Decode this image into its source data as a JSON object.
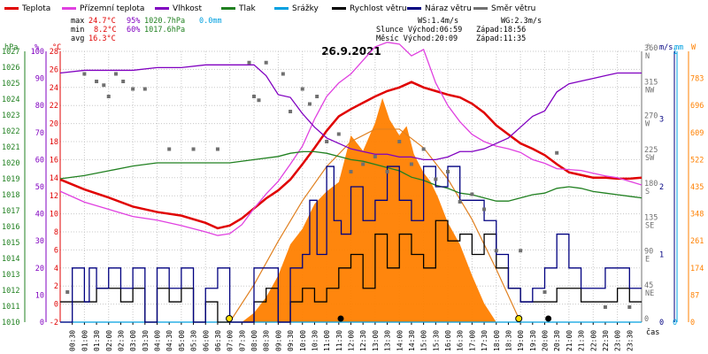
{
  "legend": [
    {
      "label": "Teplota",
      "color": "#e00000"
    },
    {
      "label": "Přízemní teplota",
      "color": "#e040e0"
    },
    {
      "label": "Vlhkost",
      "color": "#8000c0"
    },
    {
      "label": "Tlak",
      "color": "#208020"
    },
    {
      "label": "Srážky",
      "color": "#00a0e0"
    },
    {
      "label": "Rychlost větru",
      "color": "#000000"
    },
    {
      "label": "Náraz větru",
      "color": "#000080"
    },
    {
      "label": "Směr větru",
      "color": "#707070"
    }
  ],
  "stats": {
    "max": {
      "label": "max",
      "temp": "24.7°C",
      "hum": "95%",
      "press": "1020.7hPa",
      "rain": "0.0mm"
    },
    "min": {
      "label": "min",
      "temp": "8.2°C",
      "hum": "60%",
      "press": "1017.6hPa"
    },
    "avg": {
      "label": "avg",
      "temp": "16.3°C"
    }
  },
  "info": {
    "ws": "WS:1.4m/s",
    "wg": "WG:2.3m/s",
    "sun": "Slunce Východ:06:59",
    "sun_set": "Západ:18:56",
    "moon": "Měsíc Východ:20:09",
    "moon_set": "Západ:11:35"
  },
  "chart_data": {
    "type": "line",
    "title": "26.9.2021",
    "x_tick_labels": [
      "00:30",
      "01:00",
      "01:30",
      "02:00",
      "02:30",
      "03:00",
      "03:30",
      "04:00",
      "04:30",
      "05:00",
      "05:30",
      "06:00",
      "06:30",
      "07:00",
      "07:30",
      "08:00",
      "08:30",
      "09:00",
      "09:30",
      "10:00",
      "10:30",
      "11:00",
      "11:30",
      "12:00",
      "12:30",
      "13:00",
      "13:30",
      "14:00",
      "14:30",
      "15:00",
      "15:30",
      "16:00",
      "16:30",
      "17:00",
      "17:30",
      "18:00",
      "18:30",
      "19:00",
      "19:30",
      "20:00",
      "20:30",
      "21:00",
      "21:30",
      "22:00",
      "22:30",
      "23:00",
      "23:30"
    ],
    "xlabel": "čas",
    "axes": {
      "pressure": {
        "unit": "hPa",
        "range": [
          1010,
          1027
        ],
        "ticks": [
          1010,
          1011,
          1012,
          1013,
          1014,
          1015,
          1016,
          1017,
          1018,
          1019,
          1020,
          1021,
          1022,
          1023,
          1024,
          1025,
          1026,
          1027
        ]
      },
      "humidity": {
        "unit": "%",
        "range": [
          0,
          100
        ],
        "ticks": [
          0,
          10,
          20,
          30,
          40,
          50,
          60,
          70,
          80,
          90,
          100
        ]
      },
      "temperature": {
        "unit": "°C",
        "range": [
          -2,
          28
        ],
        "ticks": [
          -2,
          0,
          2,
          4,
          6,
          8,
          10,
          12,
          14,
          16,
          18,
          20,
          22,
          24,
          26,
          28
        ]
      },
      "direction": {
        "unit": "°",
        "range": [
          0,
          360
        ],
        "ticks": [
          {
            "v": 0,
            "l": "0"
          },
          {
            "v": 45,
            "l": "45"
          },
          {
            "v": 90,
            "l": "90"
          },
          {
            "v": 135,
            "l": "135"
          },
          {
            "v": 180,
            "l": "180"
          },
          {
            "v": 225,
            "l": "225"
          },
          {
            "v": 270,
            "l": "270"
          },
          {
            "v": 315,
            "l": "315"
          },
          {
            "v": 360,
            "l": "360"
          }
        ],
        "dir_labels": [
          {
            "v": 0,
            "l": ""
          },
          {
            "v": 45,
            "l": "NE"
          },
          {
            "v": 90,
            "l": "E"
          },
          {
            "v": 135,
            "l": "SE"
          },
          {
            "v": 180,
            "l": "S"
          },
          {
            "v": 225,
            "l": "SW"
          },
          {
            "v": 270,
            "l": "W"
          },
          {
            "v": 315,
            "l": "NW"
          },
          {
            "v": 360,
            "l": "N"
          }
        ]
      },
      "wind": {
        "unit": "m/s",
        "range": [
          0,
          4
        ],
        "ticks": [
          0,
          1,
          2,
          3
        ]
      },
      "rain": {
        "unit": "mm",
        "range": [
          0,
          1
        ],
        "ticks": [
          0,
          1
        ]
      },
      "solar": {
        "unit": "W",
        "range": [
          0,
          870
        ],
        "ticks": [
          0,
          87,
          174,
          261,
          348,
          435,
          522,
          609,
          696,
          783
        ]
      }
    },
    "series": [
      {
        "name": "Teplota",
        "axis": "temperature",
        "color": "#e00000",
        "x": [
          0,
          1,
          2,
          3,
          4,
          5,
          6,
          6.5,
          7,
          7.5,
          8,
          8.5,
          9,
          9.5,
          10,
          10.5,
          11,
          11.5,
          12,
          12.5,
          13,
          13.5,
          14,
          14.5,
          15,
          15.5,
          16,
          16.5,
          17,
          17.5,
          18,
          18.5,
          19,
          19.5,
          20,
          20.5,
          21,
          21.5,
          22,
          22.5,
          23,
          23.5,
          24
        ],
        "y": [
          13.8,
          12.7,
          11.8,
          10.8,
          10.2,
          9.8,
          9.0,
          8.4,
          8.7,
          9.5,
          10.6,
          11.7,
          12.6,
          13.8,
          15.5,
          17.3,
          19.2,
          20.8,
          21.6,
          22.3,
          23.0,
          23.6,
          24.0,
          24.6,
          24.0,
          23.6,
          23.2,
          22.9,
          22.2,
          21.2,
          19.8,
          18.8,
          17.8,
          17.2,
          16.5,
          15.5,
          14.6,
          14.3,
          14.0,
          14.0,
          13.9,
          13.9,
          14.0
        ]
      },
      {
        "name": "Přízemní teplota",
        "axis": "temperature",
        "color": "#e040e0",
        "x": [
          0,
          1,
          2,
          3,
          4,
          5,
          6,
          6.5,
          7,
          7.5,
          8,
          8.5,
          9,
          9.5,
          10,
          10.5,
          11,
          11.5,
          12,
          12.5,
          13,
          13.5,
          14,
          14.5,
          15,
          15.5,
          16,
          16.5,
          17,
          17.5,
          18,
          18.5,
          19,
          19.5,
          20,
          20.5,
          21,
          21.5,
          22,
          22.5,
          23,
          23.5,
          24
        ],
        "y": [
          12.5,
          11.3,
          10.5,
          9.7,
          9.3,
          8.7,
          8.0,
          7.6,
          7.8,
          8.8,
          10.6,
          12.2,
          13.6,
          15.5,
          17.5,
          20.5,
          23.0,
          24.5,
          25.5,
          27.0,
          28.5,
          29.0,
          28.8,
          27.5,
          28.2,
          24.5,
          22.0,
          20.2,
          18.8,
          18.0,
          17.5,
          17.2,
          16.8,
          16.0,
          15.6,
          15.0,
          14.9,
          14.8,
          14.5,
          14.2,
          14.0,
          13.6,
          13.2
        ]
      },
      {
        "name": "Vlhkost",
        "axis": "humidity",
        "color": "#8000c0",
        "x": [
          0,
          1,
          2,
          3,
          4,
          5,
          6,
          7,
          7.5,
          8,
          8.5,
          9,
          9.5,
          10,
          10.5,
          11,
          11.5,
          12,
          12.5,
          13,
          13.5,
          14,
          14.5,
          15,
          15.5,
          16,
          16.5,
          17,
          17.5,
          18,
          18.5,
          19,
          19.5,
          20,
          20.5,
          21,
          21.5,
          22,
          22.5,
          23,
          23.5,
          24
        ],
        "y": [
          92,
          93,
          93,
          93,
          94,
          94,
          95,
          95,
          95,
          95,
          91,
          84,
          83,
          77,
          72,
          68,
          66,
          64,
          63,
          62,
          62,
          61,
          61,
          60,
          60,
          61,
          63,
          63,
          64,
          66,
          68,
          72,
          76,
          78,
          85,
          88,
          89,
          90,
          91,
          92,
          92,
          92
        ]
      },
      {
        "name": "Tlak",
        "axis": "pressure",
        "color": "#208020",
        "x": [
          0,
          1,
          2,
          3,
          4,
          5,
          6,
          7,
          8,
          9,
          9.5,
          10,
          10.5,
          11,
          11.5,
          12,
          12.5,
          13,
          13.5,
          14,
          14.5,
          15,
          15.5,
          16,
          16.5,
          17,
          17.5,
          18,
          18.5,
          19,
          19.5,
          20,
          20.5,
          21,
          21.5,
          22,
          22.5,
          23,
          23.5,
          24
        ],
        "y": [
          1019.0,
          1019.2,
          1019.5,
          1019.8,
          1020.0,
          1020.0,
          1020.0,
          1020.0,
          1020.2,
          1020.4,
          1020.6,
          1020.7,
          1020.7,
          1020.6,
          1020.4,
          1020.2,
          1020.1,
          1019.9,
          1019.7,
          1019.5,
          1019.1,
          1018.9,
          1018.6,
          1018.4,
          1018.1,
          1018.0,
          1017.8,
          1017.6,
          1017.6,
          1017.8,
          1018.0,
          1018.1,
          1018.4,
          1018.5,
          1018.4,
          1018.2,
          1018.1,
          1018.0,
          1017.9,
          1017.8
        ]
      },
      {
        "name": "Srážky",
        "axis": "rain",
        "color": "#00a0e0",
        "x": [
          0,
          24
        ],
        "y": [
          0,
          0
        ]
      },
      {
        "name": "Rychlost větru",
        "axis": "wind",
        "color": "#000000",
        "x": [
          0,
          1,
          1.5,
          2,
          2.5,
          3,
          3.5,
          4,
          4.5,
          5,
          5.5,
          6,
          6.5,
          7,
          7.5,
          8,
          8.5,
          9,
          9.5,
          10,
          10.5,
          11,
          11.5,
          12,
          12.5,
          13,
          13.5,
          14,
          14.5,
          15,
          15.5,
          16,
          16.5,
          17,
          17.5,
          18,
          18.5,
          19,
          19.5,
          20,
          20.5,
          21,
          21.5,
          22,
          22.5,
          23,
          23.5,
          24
        ],
        "y": [
          0.3,
          0.3,
          0.5,
          0.5,
          0.3,
          0.5,
          0,
          0.5,
          0.3,
          0.5,
          0,
          0.3,
          0,
          0,
          0,
          0.3,
          0.5,
          0,
          0.3,
          0.5,
          0.3,
          0.5,
          0.8,
          1.0,
          0.5,
          1.3,
          0.8,
          1.3,
          1.0,
          0.8,
          1.5,
          1.2,
          1.3,
          1.0,
          1.3,
          0.8,
          0.5,
          0.3,
          0.3,
          0.3,
          0.5,
          0.5,
          0.3,
          0.3,
          0.3,
          0.5,
          0.3,
          0.3
        ]
      },
      {
        "name": "Náraz větru",
        "axis": "wind",
        "color": "#000080",
        "x": [
          0,
          0.5,
          1,
          1.2,
          1.5,
          2,
          2.5,
          3,
          3.5,
          4,
          4.5,
          5,
          5.5,
          6,
          6.5,
          7,
          7.5,
          8,
          8.5,
          9,
          9.5,
          10,
          10.3,
          10.6,
          11,
          11.3,
          11.6,
          12,
          12.5,
          13,
          13.5,
          14,
          14.5,
          15,
          15.5,
          16,
          16.5,
          17,
          17.5,
          18,
          18.5,
          19,
          19.5,
          20,
          20.5,
          21,
          21.5,
          22,
          22.5,
          23,
          23.5,
          24
        ],
        "y": [
          0,
          0.8,
          0.3,
          0.8,
          0.5,
          0.8,
          0.5,
          0.8,
          0,
          0.8,
          0.5,
          0.8,
          0,
          0.5,
          0.8,
          0,
          0,
          0.8,
          0.8,
          0,
          0.8,
          1.0,
          1.8,
          1.0,
          2.3,
          1.5,
          1.3,
          2.0,
          1.5,
          1.8,
          2.3,
          1.8,
          1.5,
          2.3,
          2.0,
          2.3,
          1.8,
          1.8,
          1.5,
          1.0,
          0.5,
          0.3,
          0.5,
          0.8,
          1.3,
          0.8,
          0.5,
          0.5,
          0.8,
          0.8,
          0.5,
          0.5
        ]
      },
      {
        "name": "Směr větru",
        "axis": "direction",
        "color": "#707070",
        "x": [
          0.3,
          1.0,
          1.5,
          1.8,
          2.0,
          2.3,
          2.6,
          3.0,
          3.5,
          4.5,
          5.5,
          6.5,
          7.8,
          8.0,
          8.2,
          8.5,
          9.2,
          9.5,
          10.0,
          10.3,
          10.6,
          11.0,
          11.5,
          12.0,
          12.5,
          13.0,
          13.5,
          14.0,
          14.5,
          15.0,
          15.5,
          16.0,
          16.5,
          17.0,
          17.5,
          18.0,
          19.0,
          20.0,
          20.5,
          22.5,
          23.5
        ],
        "y": [
          40,
          330,
          320,
          315,
          300,
          330,
          320,
          310,
          310,
          230,
          230,
          230,
          345,
          300,
          295,
          345,
          330,
          280,
          310,
          290,
          300,
          240,
          250,
          200,
          210,
          220,
          200,
          240,
          210,
          230,
          190,
          200,
          160,
          170,
          150,
          95,
          95,
          40,
          225,
          20,
          20
        ]
      }
    ],
    "solar_series": {
      "name": "Solar",
      "axis": "solar",
      "color": "#ff8000",
      "x": [
        7.5,
        8,
        8.5,
        9,
        9.5,
        10,
        10.5,
        11,
        11.5,
        12,
        12.5,
        13,
        13.3,
        13.6,
        14,
        14.3,
        14.6,
        15,
        15.3,
        15.6,
        16,
        16.5,
        17,
        17.5,
        18
      ],
      "y": [
        0,
        30,
        80,
        150,
        250,
        300,
        380,
        420,
        450,
        600,
        550,
        640,
        720,
        650,
        600,
        630,
        540,
        480,
        450,
        400,
        320,
        250,
        150,
        60,
        0
      ]
    },
    "theory_solar": {
      "x": [
        7,
        8,
        9,
        10,
        11,
        12,
        13,
        14,
        15,
        16,
        17,
        18,
        19
      ],
      "y": [
        0,
        120,
        260,
        390,
        500,
        580,
        620,
        620,
        560,
        460,
        330,
        170,
        0
      ]
    }
  }
}
